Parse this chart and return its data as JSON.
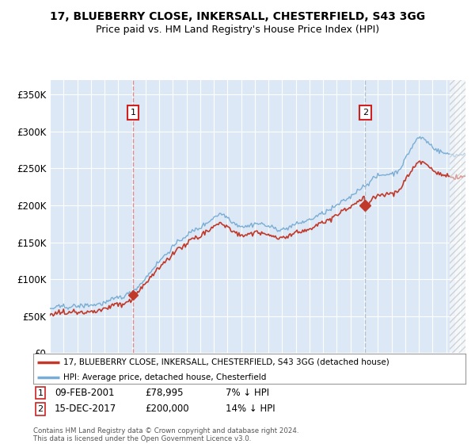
{
  "title": "17, BLUEBERRY CLOSE, INKERSALL, CHESTERFIELD, S43 3GG",
  "subtitle": "Price paid vs. HM Land Registry's House Price Index (HPI)",
  "ylim": [
    0,
    370000
  ],
  "yticks": [
    0,
    50000,
    100000,
    150000,
    200000,
    250000,
    300000,
    350000
  ],
  "ytick_labels": [
    "£0",
    "£50K",
    "£100K",
    "£150K",
    "£200K",
    "£250K",
    "£300K",
    "£350K"
  ],
  "bg_color": "#dce8f5",
  "hpi_color": "#7aadd4",
  "price_color": "#c0392b",
  "vline1_color": "#e08080",
  "vline2_color": "#aabbcc",
  "marker_box_color": "#cc2222",
  "legend_line1": "17, BLUEBERRY CLOSE, INKERSALL, CHESTERFIELD, S43 3GG (detached house)",
  "legend_line2": "HPI: Average price, detached house, Chesterfield",
  "footer": "Contains HM Land Registry data © Crown copyright and database right 2024.\nThis data is licensed under the Open Government Licence v3.0.",
  "title_fontsize": 10,
  "subtitle_fontsize": 9,
  "start_year": 1995,
  "end_year": 2025,
  "marker1_month": 73,
  "marker1_price": 78995,
  "marker2_month": 277,
  "marker2_price": 200000
}
